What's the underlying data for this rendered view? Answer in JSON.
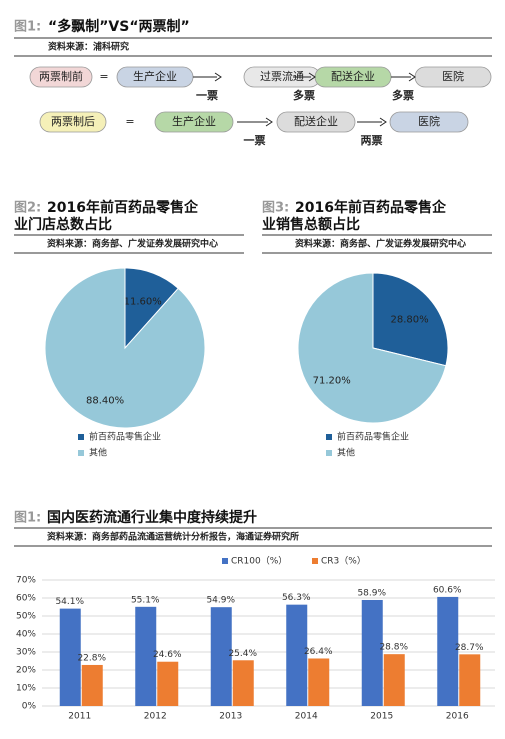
{
  "figure1": {
    "label": "图1:",
    "title": "“多飘制”VS“两票制”",
    "source": "资料来源：浦科研究",
    "rows": [
      {
        "head": "两票制前",
        "equals": "=",
        "nodes": [
          "生产企业",
          "过票流通",
          "配送企业",
          "医院"
        ],
        "arrows": [
          "一票",
          "多票",
          "多票"
        ]
      },
      {
        "head": "两票制后",
        "equals": "=",
        "nodes": [
          "生产企业",
          "配送企业",
          "医院"
        ],
        "arrows": [
          "一票",
          "两票"
        ]
      }
    ]
  },
  "chart_data": [
    {
      "type": "pie",
      "figure_label": "图2:",
      "title": "2016年前百药品零售企业门店总数占比",
      "source": "资料来源：商务部、广发证券发展研究中心",
      "categories": [
        "前百药品零售企业",
        "其他"
      ],
      "values": [
        11.6,
        88.4
      ],
      "value_labels": [
        "11.60%",
        "88.40%"
      ],
      "colors": [
        "#1f5f99",
        "#96c8d9"
      ]
    },
    {
      "type": "pie",
      "figure_label": "图3:",
      "title": "2016年前百药品零售企业销售总额占比",
      "source": "资料来源：商务部、广发证券发展研究中心",
      "categories": [
        "前百药品零售企业",
        "其他"
      ],
      "values": [
        28.8,
        71.2
      ],
      "value_labels": [
        "28.80%",
        "71.20%"
      ],
      "colors": [
        "#1f5f99",
        "#96c8d9"
      ]
    },
    {
      "type": "bar",
      "figure_label": "图1:",
      "title": "国内医药流通行业集中度持续提升",
      "source": "资料来源：商务部药品流通运营统计分析报告，海通证券研究所",
      "categories": [
        "2011",
        "2012",
        "2013",
        "2014",
        "2015",
        "2016"
      ],
      "series": [
        {
          "name": "CR100（%）",
          "color": "#4472c4",
          "values": [
            54.1,
            55.1,
            54.9,
            56.3,
            58.9,
            60.6
          ],
          "value_labels": [
            "54.1%",
            "55.1%",
            "54.9%",
            "56.3%",
            "58.9%",
            "60.6%"
          ]
        },
        {
          "name": "CR3（%）",
          "color": "#ed7d31",
          "values": [
            22.8,
            24.6,
            25.4,
            26.4,
            28.8,
            28.7
          ],
          "value_labels": [
            "22.8%",
            "24.6%",
            "25.4%",
            "26.4%",
            "28.8%",
            "28.7%"
          ]
        }
      ],
      "ylim": [
        0,
        70
      ],
      "yticks": [
        {
          "value": 0,
          "label": "0%"
        },
        {
          "value": 10,
          "label": "10%"
        },
        {
          "value": 20,
          "label": "20%"
        },
        {
          "value": 30,
          "label": "30%"
        },
        {
          "value": 40,
          "label": "40%"
        },
        {
          "value": 50,
          "label": "50%"
        },
        {
          "value": 60,
          "label": "60%"
        },
        {
          "value": 70,
          "label": "70%"
        }
      ],
      "grid": true
    }
  ]
}
